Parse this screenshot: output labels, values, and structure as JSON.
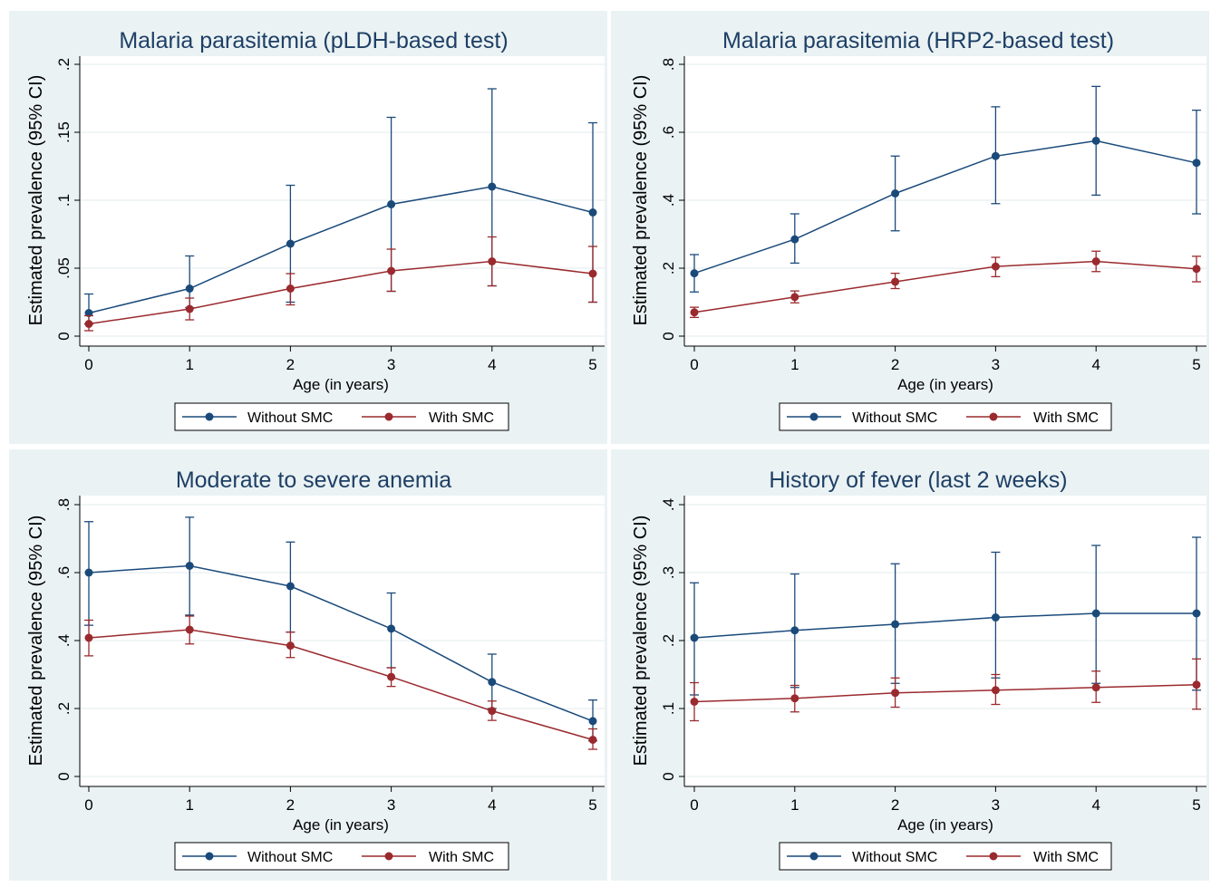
{
  "colors": {
    "without_smc": "#1a4a7a",
    "with_smc": "#9a2a2e",
    "title_text": "#1e3f66",
    "panel_background": "#eaf2f3",
    "plot_background": "#ffffff",
    "gridline": "#e3ebee"
  },
  "chart_data": [
    {
      "type": "line",
      "title": "Malaria parasitemia (pLDH-based test)",
      "xlabel": "Age (in years)",
      "ylabel": "Estimated prevalence (95% CI)",
      "x": [
        0,
        1,
        2,
        3,
        4,
        5
      ],
      "xticks": [
        "0",
        "1",
        "2",
        "3",
        "4",
        "5"
      ],
      "ylim": [
        0,
        0.2
      ],
      "yticks": [
        {
          "v": 0,
          "label": "0"
        },
        {
          "v": 0.05,
          "label": ".05"
        },
        {
          "v": 0.1,
          "label": ".1"
        },
        {
          "v": 0.15,
          "label": ".15"
        },
        {
          "v": 0.2,
          "label": ".2"
        }
      ],
      "grid": true,
      "legend": "bottom",
      "series": [
        {
          "name": "Without SMC",
          "values": [
            0.017,
            0.035,
            0.068,
            0.097,
            0.11,
            0.091
          ],
          "lower": [
            0.009,
            0.021,
            0.025,
            0.033,
            0.037,
            0.025
          ],
          "upper": [
            0.031,
            0.059,
            0.111,
            0.161,
            0.182,
            0.157
          ]
        },
        {
          "name": "With SMC",
          "values": [
            0.009,
            0.02,
            0.035,
            0.048,
            0.055,
            0.046
          ],
          "lower": [
            0.004,
            0.012,
            0.023,
            0.033,
            0.037,
            0.025
          ],
          "upper": [
            0.015,
            0.028,
            0.046,
            0.064,
            0.073,
            0.066
          ]
        }
      ]
    },
    {
      "type": "line",
      "title": "Malaria parasitemia (HRP2-based test)",
      "xlabel": "Age (in years)",
      "ylabel": "Estimated prevalence (95% CI)",
      "x": [
        0,
        1,
        2,
        3,
        4,
        5
      ],
      "xticks": [
        "0",
        "1",
        "2",
        "3",
        "4",
        "5"
      ],
      "ylim": [
        0,
        0.8
      ],
      "yticks": [
        {
          "v": 0,
          "label": "0"
        },
        {
          "v": 0.2,
          "label": ".2"
        },
        {
          "v": 0.4,
          "label": ".4"
        },
        {
          "v": 0.6,
          "label": ".6"
        },
        {
          "v": 0.8,
          "label": ".8"
        }
      ],
      "grid": true,
      "legend": "bottom",
      "series": [
        {
          "name": "Without SMC",
          "values": [
            0.185,
            0.285,
            0.42,
            0.53,
            0.575,
            0.51
          ],
          "lower": [
            0.13,
            0.215,
            0.31,
            0.39,
            0.415,
            0.36
          ],
          "upper": [
            0.24,
            0.36,
            0.53,
            0.675,
            0.735,
            0.665
          ]
        },
        {
          "name": "With SMC",
          "values": [
            0.07,
            0.115,
            0.16,
            0.205,
            0.22,
            0.198
          ],
          "lower": [
            0.055,
            0.098,
            0.14,
            0.175,
            0.19,
            0.16
          ],
          "upper": [
            0.085,
            0.133,
            0.185,
            0.232,
            0.25,
            0.235
          ]
        }
      ]
    },
    {
      "type": "line",
      "title": "Moderate to severe anemia",
      "xlabel": "Age (in years)",
      "ylabel": "Estimated prevalence (95% CI)",
      "x": [
        0,
        1,
        2,
        3,
        4,
        5
      ],
      "xticks": [
        "0",
        "1",
        "2",
        "3",
        "4",
        "5"
      ],
      "ylim": [
        0,
        0.8
      ],
      "yticks": [
        {
          "v": 0,
          "label": "0"
        },
        {
          "v": 0.2,
          "label": ".2"
        },
        {
          "v": 0.4,
          "label": ".4"
        },
        {
          "v": 0.6,
          "label": ".6"
        },
        {
          "v": 0.8,
          "label": ".8"
        }
      ],
      "grid": true,
      "legend": "bottom",
      "series": [
        {
          "name": "Without SMC",
          "values": [
            0.6,
            0.62,
            0.56,
            0.435,
            0.278,
            0.163
          ],
          "lower": [
            0.445,
            0.475,
            0.425,
            0.32,
            0.2,
            0.105
          ],
          "upper": [
            0.75,
            0.763,
            0.69,
            0.54,
            0.36,
            0.225
          ]
        },
        {
          "name": "With SMC",
          "values": [
            0.408,
            0.432,
            0.385,
            0.293,
            0.193,
            0.108
          ],
          "lower": [
            0.355,
            0.39,
            0.35,
            0.265,
            0.165,
            0.08
          ],
          "upper": [
            0.46,
            0.472,
            0.425,
            0.32,
            0.222,
            0.14
          ]
        }
      ]
    },
    {
      "type": "line",
      "title": "History of fever (last 2 weeks)",
      "xlabel": "Age (in years)",
      "ylabel": "Estimated prevalence (95% CI)",
      "x": [
        0,
        1,
        2,
        3,
        4,
        5
      ],
      "xticks": [
        "0",
        "1",
        "2",
        "3",
        "4",
        "5"
      ],
      "ylim": [
        0,
        0.4
      ],
      "yticks": [
        {
          "v": 0,
          "label": "0"
        },
        {
          "v": 0.1,
          "label": ".1"
        },
        {
          "v": 0.2,
          "label": ".2"
        },
        {
          "v": 0.3,
          "label": ".3"
        },
        {
          "v": 0.4,
          "label": ".4"
        }
      ],
      "grid": true,
      "legend": "bottom",
      "series": [
        {
          "name": "Without SMC",
          "values": [
            0.204,
            0.215,
            0.224,
            0.234,
            0.24,
            0.24
          ],
          "lower": [
            0.12,
            0.131,
            0.137,
            0.145,
            0.137,
            0.127
          ],
          "upper": [
            0.285,
            0.298,
            0.313,
            0.33,
            0.34,
            0.352
          ]
        },
        {
          "name": "With SMC",
          "values": [
            0.11,
            0.115,
            0.123,
            0.127,
            0.131,
            0.135
          ],
          "lower": [
            0.082,
            0.095,
            0.102,
            0.106,
            0.109,
            0.099
          ],
          "upper": [
            0.138,
            0.134,
            0.145,
            0.15,
            0.155,
            0.173
          ]
        }
      ]
    }
  ]
}
